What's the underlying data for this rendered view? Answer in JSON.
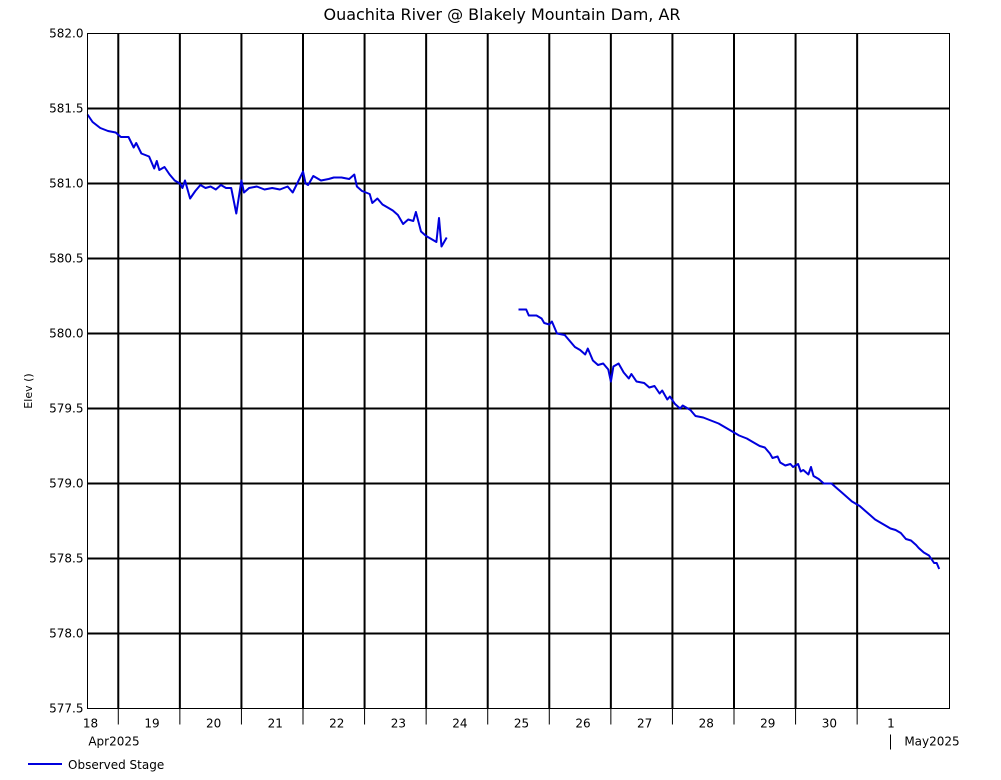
{
  "chart_data": {
    "type": "line",
    "title": "Ouachita River @ Blakely Mountain Dam, AR",
    "ylabel": "Elev ()",
    "xlabel": "",
    "ylim": [
      577.5,
      582.0
    ],
    "yticks": [
      577.5,
      578.0,
      578.5,
      579.0,
      579.5,
      580.0,
      580.5,
      581.0,
      581.5,
      582.0
    ],
    "y_tick_labels": [
      "577.5",
      "578.0",
      "578.5",
      "579.0",
      "579.5",
      "580.0",
      "580.5",
      "581.0",
      "581.5",
      "582.0"
    ],
    "x_range_days": [
      "2025-04-17T12:00",
      "2025-05-01T12:00"
    ],
    "x_ticks": [
      "18",
      "19",
      "20",
      "21",
      "22",
      "23",
      "24",
      "25",
      "26",
      "27",
      "28",
      "29",
      "30",
      "1"
    ],
    "x_month_labels": [
      "Apr2025",
      "May2025"
    ],
    "grid": true,
    "legend": "bottom-left",
    "colors": {
      "line": "#0000dd",
      "grid": "#000000",
      "background": "#ffffff"
    },
    "series": [
      {
        "name": "Observed Stage",
        "segments": [
          [
            [
              "2025-04-17T12:00",
              581.46
            ],
            [
              "2025-04-17T14:00",
              581.41
            ],
            [
              "2025-04-17T17:00",
              581.37
            ],
            [
              "2025-04-17T20:00",
              581.35
            ],
            [
              "2025-04-17T23:00",
              581.34
            ],
            [
              "2025-04-18T01:00",
              581.31
            ],
            [
              "2025-04-18T04:00",
              581.31
            ],
            [
              "2025-04-18T06:00",
              581.24
            ],
            [
              "2025-04-18T07:00",
              581.27
            ],
            [
              "2025-04-18T09:00",
              581.2
            ],
            [
              "2025-04-18T12:00",
              581.18
            ],
            [
              "2025-04-18T14:00",
              581.1
            ],
            [
              "2025-04-18T15:00",
              581.15
            ],
            [
              "2025-04-18T16:00",
              581.09
            ],
            [
              "2025-04-18T18:00",
              581.11
            ],
            [
              "2025-04-18T20:00",
              581.06
            ],
            [
              "2025-04-18T22:00",
              581.02
            ],
            [
              "2025-04-19T00:00",
              581.0
            ],
            [
              "2025-04-19T01:00",
              580.97
            ],
            [
              "2025-04-19T02:00",
              581.02
            ],
            [
              "2025-04-19T04:00",
              580.9
            ],
            [
              "2025-04-19T06:00",
              580.95
            ],
            [
              "2025-04-19T08:00",
              580.99
            ],
            [
              "2025-04-19T10:00",
              580.97
            ],
            [
              "2025-04-19T12:00",
              580.98
            ],
            [
              "2025-04-19T14:00",
              580.96
            ],
            [
              "2025-04-19T16:00",
              580.99
            ],
            [
              "2025-04-19T18:00",
              580.97
            ],
            [
              "2025-04-19T20:00",
              580.97
            ],
            [
              "2025-04-19T22:00",
              580.8
            ],
            [
              "2025-04-20T00:00",
              581.02
            ],
            [
              "2025-04-20T01:00",
              580.94
            ],
            [
              "2025-04-20T03:00",
              580.97
            ],
            [
              "2025-04-20T06:00",
              580.98
            ],
            [
              "2025-04-20T09:00",
              580.96
            ],
            [
              "2025-04-20T12:00",
              580.97
            ],
            [
              "2025-04-20T15:00",
              580.96
            ],
            [
              "2025-04-20T18:00",
              580.98
            ],
            [
              "2025-04-20T20:00",
              580.94
            ],
            [
              "2025-04-20T22:00",
              581.01
            ],
            [
              "2025-04-21T00:00",
              581.08
            ],
            [
              "2025-04-21T01:00",
              581.0
            ],
            [
              "2025-04-21T02:00",
              580.99
            ],
            [
              "2025-04-21T04:00",
              581.05
            ],
            [
              "2025-04-21T07:00",
              581.02
            ],
            [
              "2025-04-21T10:00",
              581.03
            ],
            [
              "2025-04-21T12:00",
              581.04
            ],
            [
              "2025-04-21T15:00",
              581.04
            ],
            [
              "2025-04-21T18:00",
              581.03
            ],
            [
              "2025-04-21T20:00",
              581.06
            ],
            [
              "2025-04-21T21:00",
              580.98
            ],
            [
              "2025-04-21T23:00",
              580.95
            ],
            [
              "2025-04-22T02:00",
              580.93
            ],
            [
              "2025-04-22T03:00",
              580.87
            ],
            [
              "2025-04-22T05:00",
              580.9
            ],
            [
              "2025-04-22T07:00",
              580.86
            ],
            [
              "2025-04-22T09:00",
              580.84
            ],
            [
              "2025-04-22T11:00",
              580.82
            ],
            [
              "2025-04-22T13:00",
              580.79
            ],
            [
              "2025-04-22T15:00",
              580.73
            ],
            [
              "2025-04-22T17:00",
              580.76
            ],
            [
              "2025-04-22T19:00",
              580.75
            ],
            [
              "2025-04-22T20:00",
              580.81
            ],
            [
              "2025-04-22T22:00",
              580.68
            ],
            [
              "2025-04-23T00:00",
              580.65
            ],
            [
              "2025-04-23T02:00",
              580.63
            ],
            [
              "2025-04-23T04:00",
              580.61
            ],
            [
              "2025-04-23T05:00",
              580.77
            ],
            [
              "2025-04-23T06:00",
              580.58
            ],
            [
              "2025-04-23T08:00",
              580.64
            ]
          ],
          [
            [
              "2025-04-24T12:00",
              580.16
            ],
            [
              "2025-04-24T15:00",
              580.16
            ],
            [
              "2025-04-24T16:00",
              580.12
            ],
            [
              "2025-04-24T19:00",
              580.12
            ],
            [
              "2025-04-24T21:00",
              580.1
            ],
            [
              "2025-04-24T22:00",
              580.07
            ],
            [
              "2025-04-25T00:00",
              580.06
            ],
            [
              "2025-04-25T01:00",
              580.08
            ],
            [
              "2025-04-25T03:00",
              580.0
            ],
            [
              "2025-04-25T06:00",
              579.99
            ],
            [
              "2025-04-25T08:00",
              579.95
            ],
            [
              "2025-04-25T10:00",
              579.91
            ],
            [
              "2025-04-25T12:00",
              579.89
            ],
            [
              "2025-04-25T14:00",
              579.86
            ],
            [
              "2025-04-25T15:00",
              579.9
            ],
            [
              "2025-04-25T17:00",
              579.82
            ],
            [
              "2025-04-25T19:00",
              579.79
            ],
            [
              "2025-04-25T21:00",
              579.8
            ],
            [
              "2025-04-25T23:00",
              579.76
            ],
            [
              "2025-04-26T00:00",
              579.68
            ],
            [
              "2025-04-26T01:00",
              579.78
            ],
            [
              "2025-04-26T03:00",
              579.8
            ],
            [
              "2025-04-26T05:00",
              579.74
            ],
            [
              "2025-04-26T07:00",
              579.7
            ],
            [
              "2025-04-26T08:00",
              579.73
            ],
            [
              "2025-04-26T10:00",
              579.68
            ],
            [
              "2025-04-26T13:00",
              579.67
            ],
            [
              "2025-04-26T15:00",
              579.64
            ],
            [
              "2025-04-26T17:00",
              579.65
            ],
            [
              "2025-04-26T19:00",
              579.6
            ],
            [
              "2025-04-26T20:00",
              579.62
            ],
            [
              "2025-04-26T22:00",
              579.56
            ],
            [
              "2025-04-26T23:00",
              579.58
            ],
            [
              "2025-04-27T01:00",
              579.53
            ],
            [
              "2025-04-27T03:00",
              579.5
            ],
            [
              "2025-04-27T04:00",
              579.52
            ],
            [
              "2025-04-27T07:00",
              579.49
            ],
            [
              "2025-04-27T09:00",
              579.45
            ],
            [
              "2025-04-27T12:00",
              579.44
            ],
            [
              "2025-04-27T15:00",
              579.42
            ],
            [
              "2025-04-27T18:00",
              579.4
            ],
            [
              "2025-04-27T21:00",
              579.37
            ],
            [
              "2025-04-28T00:00",
              579.34
            ],
            [
              "2025-04-28T02:00",
              579.32
            ],
            [
              "2025-04-28T05:00",
              579.3
            ],
            [
              "2025-04-28T08:00",
              579.27
            ],
            [
              "2025-04-28T10:00",
              579.25
            ],
            [
              "2025-04-28T12:00",
              579.24
            ],
            [
              "2025-04-28T14:00",
              579.2
            ],
            [
              "2025-04-28T15:00",
              579.17
            ],
            [
              "2025-04-28T17:00",
              579.18
            ],
            [
              "2025-04-28T18:00",
              579.14
            ],
            [
              "2025-04-28T20:00",
              579.12
            ],
            [
              "2025-04-28T22:00",
              579.13
            ],
            [
              "2025-04-28T23:00",
              579.11
            ],
            [
              "2025-04-29T01:00",
              579.13
            ],
            [
              "2025-04-29T02:00",
              579.08
            ],
            [
              "2025-04-29T03:00",
              579.09
            ],
            [
              "2025-04-29T05:00",
              579.06
            ],
            [
              "2025-04-29T06:00",
              579.11
            ],
            [
              "2025-04-29T07:00",
              579.05
            ],
            [
              "2025-04-29T09:00",
              579.03
            ],
            [
              "2025-04-29T11:00",
              579.0
            ],
            [
              "2025-04-29T14:00",
              579.0
            ],
            [
              "2025-04-29T16:00",
              578.97
            ],
            [
              "2025-04-29T18:00",
              578.94
            ],
            [
              "2025-04-29T20:00",
              578.91
            ],
            [
              "2025-04-29T22:00",
              578.88
            ],
            [
              "2025-04-30T01:00",
              578.85
            ],
            [
              "2025-04-30T03:00",
              578.82
            ],
            [
              "2025-04-30T05:00",
              578.79
            ],
            [
              "2025-04-30T07:00",
              578.76
            ],
            [
              "2025-04-30T10:00",
              578.73
            ],
            [
              "2025-04-30T13:00",
              578.7
            ],
            [
              "2025-04-30T15:00",
              578.69
            ],
            [
              "2025-04-30T17:00",
              578.67
            ],
            [
              "2025-04-30T19:00",
              578.63
            ],
            [
              "2025-04-30T21:00",
              578.62
            ],
            [
              "2025-04-30T23:00",
              578.59
            ],
            [
              "2025-05-01T00:00",
              578.57
            ],
            [
              "2025-05-01T02:00",
              578.54
            ],
            [
              "2025-05-01T04:00",
              578.52
            ],
            [
              "2025-05-01T06:00",
              578.47
            ],
            [
              "2025-05-01T07:00",
              578.47
            ],
            [
              "2025-05-01T08:00",
              578.43
            ]
          ]
        ]
      }
    ]
  }
}
